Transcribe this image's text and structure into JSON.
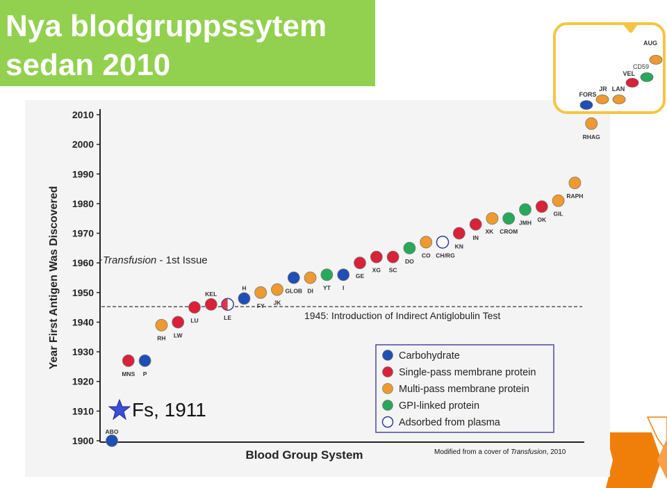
{
  "slide": {
    "title_line1": "Nya blodgruppssytem",
    "title_line2": "sedan 2010",
    "note_prefix": "Modified from a cover of ",
    "note_italic": "Transfusion",
    "note_suffix": ", 2010",
    "fs_label": "Fs, 1911",
    "colors": {
      "title_bg": "#92d050",
      "accent_orange": "#f07f09",
      "accent_yellow": "#f5c542"
    }
  },
  "inset": {
    "items": [
      {
        "name": "AUG",
        "year": 2012,
        "category": "Multi-pass membrane protein"
      },
      {
        "name": "CD59",
        "year": 2014,
        "category": "GPI-linked protein"
      },
      {
        "name": "VEL",
        "year": 2013,
        "category": "Single-pass membrane protein"
      },
      {
        "name": "LAN",
        "year": 2012,
        "category": "Multi-pass membrane protein"
      },
      {
        "name": "JR",
        "year": 2012,
        "category": "Multi-pass membrane protein"
      },
      {
        "name": "FORS",
        "year": 2012,
        "category": "Carbohydrate"
      }
    ]
  },
  "chart_data": {
    "type": "scatter",
    "xlabel": "Blood Group System",
    "ylabel": "Year First Antigen Was Discovered",
    "ylim": [
      1900,
      2010
    ],
    "yticks": [
      1900,
      1910,
      1920,
      1930,
      1940,
      1950,
      1960,
      1970,
      1980,
      1990,
      2000,
      2010
    ],
    "grid": false,
    "legend_position": "bottom-right",
    "categories": {
      "Carbohydrate": "#1f4fb4",
      "Single-pass membrane protein": "#d9213a",
      "Multi-pass membrane protein": "#ee9a2e",
      "GPI-linked protein": "#27a85a",
      "Adsorbed from plasma": "#ffffff"
    },
    "legend": [
      "Carbohydrate",
      "Single-pass membrane protein",
      "Multi-pass membrane protein",
      "GPI-linked protein",
      "Adsorbed from plasma"
    ],
    "points": [
      {
        "name": "ABO",
        "year": 1900,
        "category": "Carbohydrate"
      },
      {
        "name": "MNS",
        "year": 1927,
        "category": "Single-pass membrane protein"
      },
      {
        "name": "P",
        "year": 1927,
        "category": "Carbohydrate"
      },
      {
        "name": "RH",
        "year": 1939,
        "category": "Multi-pass membrane protein"
      },
      {
        "name": "LW",
        "year": 1940,
        "category": "Single-pass membrane protein"
      },
      {
        "name": "LU",
        "year": 1945,
        "category": "Single-pass membrane protein"
      },
      {
        "name": "KEL",
        "year": 1946,
        "category": "Single-pass membrane protein"
      },
      {
        "name": "LE",
        "year": 1946,
        "category": "Adsorbed from plasma"
      },
      {
        "name": "H",
        "year": 1948,
        "category": "Carbohydrate"
      },
      {
        "name": "FY",
        "year": 1950,
        "category": "Multi-pass membrane protein"
      },
      {
        "name": "JK",
        "year": 1951,
        "category": "Multi-pass membrane protein"
      },
      {
        "name": "GLOB",
        "year": 1955,
        "category": "Carbohydrate"
      },
      {
        "name": "DI",
        "year": 1955,
        "category": "Multi-pass membrane protein"
      },
      {
        "name": "YT",
        "year": 1956,
        "category": "GPI-linked protein"
      },
      {
        "name": "I",
        "year": 1956,
        "category": "Carbohydrate"
      },
      {
        "name": "GE",
        "year": 1960,
        "category": "Single-pass membrane protein"
      },
      {
        "name": "XG",
        "year": 1962,
        "category": "Single-pass membrane protein"
      },
      {
        "name": "SC",
        "year": 1962,
        "category": "Single-pass membrane protein"
      },
      {
        "name": "DO",
        "year": 1965,
        "category": "GPI-linked protein"
      },
      {
        "name": "CO",
        "year": 1967,
        "category": "Multi-pass membrane protein"
      },
      {
        "name": "CH/RG",
        "year": 1967,
        "category": "Adsorbed from plasma"
      },
      {
        "name": "KN",
        "year": 1970,
        "category": "Single-pass membrane protein"
      },
      {
        "name": "IN",
        "year": 1973,
        "category": "Single-pass membrane protein"
      },
      {
        "name": "XK",
        "year": 1975,
        "category": "Multi-pass membrane protein"
      },
      {
        "name": "CROM",
        "year": 1975,
        "category": "GPI-linked protein"
      },
      {
        "name": "JMH",
        "year": 1978,
        "category": "GPI-linked protein"
      },
      {
        "name": "OK",
        "year": 1979,
        "category": "Single-pass membrane protein"
      },
      {
        "name": "GIL",
        "year": 1981,
        "category": "Multi-pass membrane protein"
      },
      {
        "name": "RAPH",
        "year": 1987,
        "category": "Multi-pass membrane protein"
      },
      {
        "name": "RHAG",
        "year": 2007,
        "category": "Multi-pass membrane protein"
      }
    ],
    "annotations": [
      {
        "text_italic": "Transfusion",
        "text": " - 1st Issue",
        "year": 1961
      },
      {
        "text": "1945: Introduction of Indirect Antiglobulin Test",
        "year": 1945
      }
    ]
  }
}
